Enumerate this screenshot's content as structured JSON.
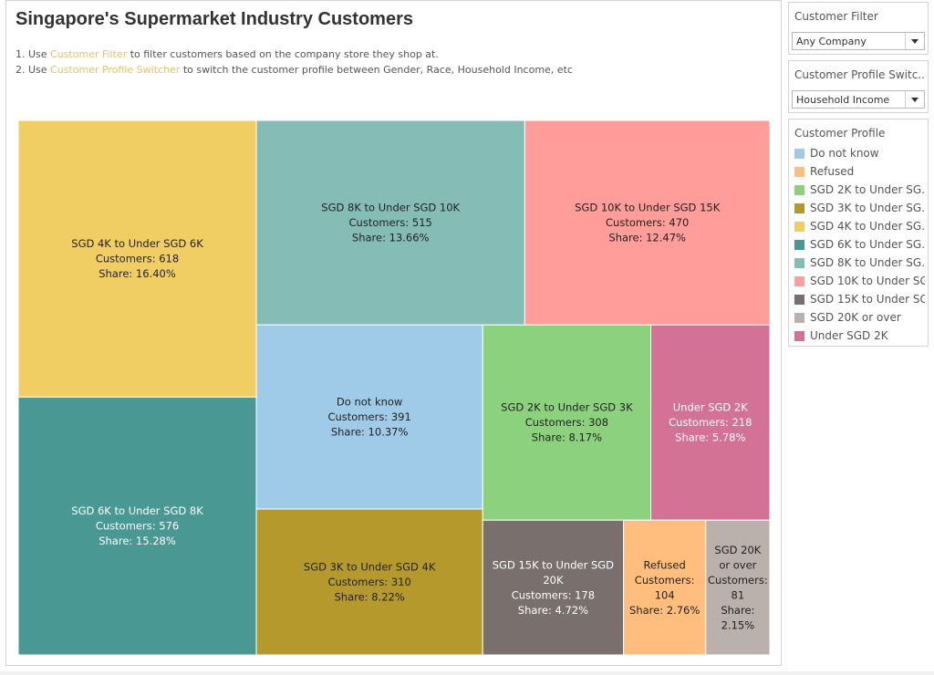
{
  "title": "Singapore's Supermarket Industry Customers",
  "instructions": [
    {
      "prefix": "1. Use ",
      "highlight": "Customer Filter",
      "suffix": " to filter customers based on the company store they shop at."
    },
    {
      "prefix": "2. Use ",
      "highlight": "Customer Profile Switcher",
      "suffix": " to switch the customer profile between Gender, Race, Household Income, etc"
    }
  ],
  "filters": {
    "customer_filter": {
      "label": "Customer Filter",
      "value": "Any Company"
    },
    "profile_switcher": {
      "label": "Customer Profile Switc...",
      "value": "Household Income"
    }
  },
  "legend": {
    "title": "Customer Profile",
    "items": [
      {
        "label": "Do not know",
        "color": "#a0cbe8"
      },
      {
        "label": "Refused",
        "color": "#ffbe7d"
      },
      {
        "label": "SGD 2K to Under SG..",
        "color": "#8cd17d"
      },
      {
        "label": "SGD 3K to Under SG..",
        "color": "#b6992d"
      },
      {
        "label": "SGD 4K to Under SG..",
        "color": "#f1ce63"
      },
      {
        "label": "SGD 6K to Under SG..",
        "color": "#499894"
      },
      {
        "label": "SGD 8K to Under SG..",
        "color": "#86bcb6"
      },
      {
        "label": "SGD 10K to Under SG..",
        "color": "#ff9d9a"
      },
      {
        "label": "SGD 15K to Under SG..",
        "color": "#79706e"
      },
      {
        "label": "SGD 20K or over",
        "color": "#bab0ac"
      },
      {
        "label": "Under SGD 2K",
        "color": "#d37295"
      }
    ]
  },
  "chart_data": {
    "type": "treemap",
    "title": "Singapore's Supermarket Industry Customers",
    "value_label": "Customers",
    "share_label": "Share",
    "items": [
      {
        "label": "SGD 4K to Under SGD 6K",
        "customers": 618,
        "share": "16.40%",
        "color": "#f1ce63",
        "text_color": "#222222"
      },
      {
        "label": "SGD 6K to Under SGD 8K",
        "customers": 576,
        "share": "15.28%",
        "color": "#499894",
        "text_color": "#ffffff"
      },
      {
        "label": "SGD 8K to Under SGD 10K",
        "customers": 515,
        "share": "13.66%",
        "color": "#86bcb6",
        "text_color": "#222222"
      },
      {
        "label": "SGD 10K to Under SGD 15K",
        "customers": 470,
        "share": "12.47%",
        "color": "#ff9d9a",
        "text_color": "#222222"
      },
      {
        "label": "Do not know",
        "customers": 391,
        "share": "10.37%",
        "color": "#a0cbe8",
        "text_color": "#222222"
      },
      {
        "label": "SGD 3K to Under SGD 4K",
        "customers": 310,
        "share": "8.22%",
        "color": "#b6992d",
        "text_color": "#222222"
      },
      {
        "label": "SGD 2K to Under SGD 3K",
        "customers": 308,
        "share": "8.17%",
        "color": "#8cd17d",
        "text_color": "#222222"
      },
      {
        "label": "Under SGD 2K",
        "customers": 218,
        "share": "5.78%",
        "color": "#d37295",
        "text_color": "#ffffff"
      },
      {
        "label": "SGD 15K to Under SGD 20K",
        "customers": 178,
        "share": "4.72%",
        "color": "#79706e",
        "text_color": "#ffffff"
      },
      {
        "label": "Refused",
        "customers": 104,
        "share": "2.76%",
        "color": "#ffbe7d",
        "text_color": "#222222"
      },
      {
        "label": "SGD 20K or over",
        "customers": 81,
        "share": "2.15%",
        "color": "#bab0ac",
        "text_color": "#222222"
      }
    ]
  }
}
